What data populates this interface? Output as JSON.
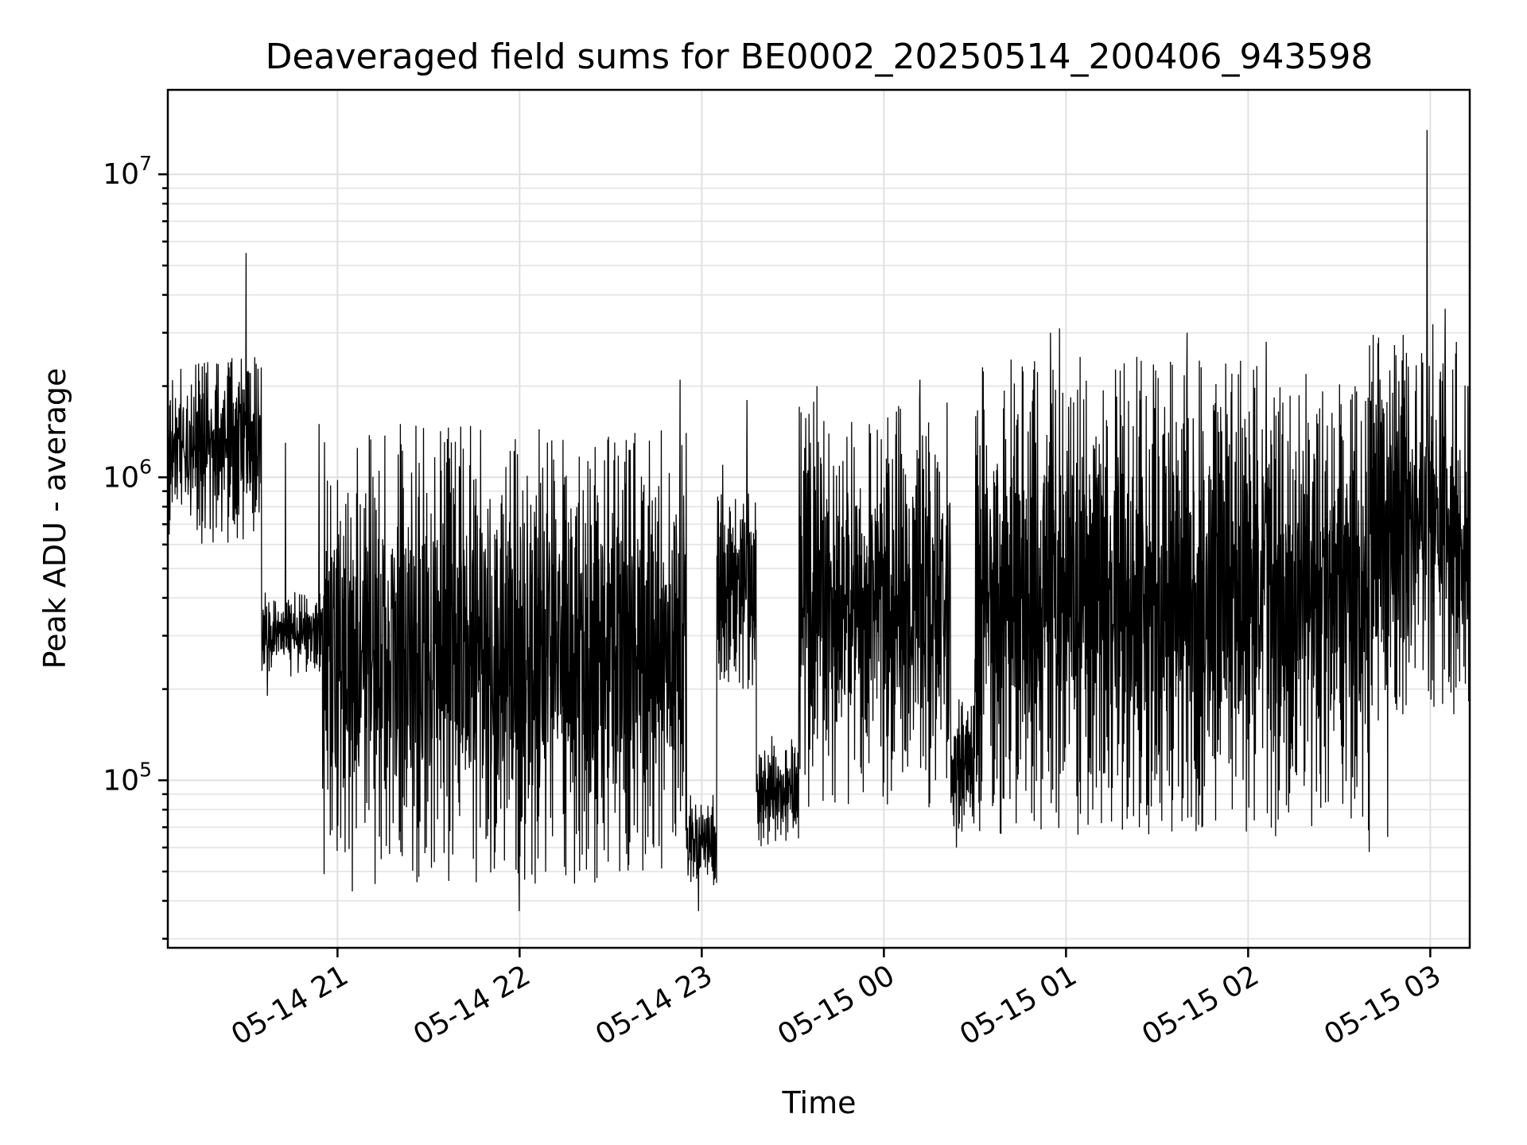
{
  "chart_data": {
    "type": "line",
    "title": "Deaveraged field sums for BE0002_20250514_200406_943598",
    "xlabel": "Time",
    "ylabel": "Peak ADU - average",
    "yscale": "log",
    "xlim": [
      "2025-05-14T20:04:06",
      "2025-05-15T03:13:00"
    ],
    "ylim": [
      28000,
      19000000
    ],
    "grid": true,
    "x_ticks": [
      "2025-05-14T21:00",
      "2025-05-14T22:00",
      "2025-05-14T23:00",
      "2025-05-15T00:00",
      "2025-05-15T01:00",
      "2025-05-15T02:00",
      "2025-05-15T03:00"
    ],
    "x_tick_labels": [
      "05-14 21",
      "05-14 22",
      "05-14 23",
      "05-15 00",
      "05-15 01",
      "05-15 02",
      "05-15 03"
    ],
    "y_ticks": [
      100000,
      1000000,
      10000000
    ],
    "y_tick_labels": [
      {
        "base": "10",
        "exp": "5"
      },
      {
        "base": "10",
        "exp": "6"
      },
      {
        "base": "10",
        "exp": "7"
      }
    ],
    "line_color": "#000000",
    "series": [
      {
        "segments": [
          {
            "start": "2025-05-14T20:04:06",
            "end": "2025-05-14T20:35:00",
            "low": 600000,
            "high": 2500000
          },
          {
            "start": "2025-05-14T20:35:00",
            "end": "2025-05-14T20:55:00",
            "low": 220000,
            "high": 420000
          },
          {
            "start": "2025-05-14T20:55:00",
            "end": "2025-05-14T22:55:00",
            "low": 45000,
            "high": 1500000
          },
          {
            "start": "2025-05-14T22:55:00",
            "end": "2025-05-14T23:05:00",
            "low": 45000,
            "high": 90000
          },
          {
            "start": "2025-05-14T23:05:00",
            "end": "2025-05-14T23:18:00",
            "low": 200000,
            "high": 900000
          },
          {
            "start": "2025-05-14T23:18:00",
            "end": "2025-05-14T23:32:00",
            "low": 60000,
            "high": 140000
          },
          {
            "start": "2025-05-14T23:32:00",
            "end": "2025-05-15T00:22:00",
            "low": 80000,
            "high": 1800000
          },
          {
            "start": "2025-05-15T00:22:00",
            "end": "2025-05-15T00:30:00",
            "low": 65000,
            "high": 200000
          },
          {
            "start": "2025-05-15T00:30:00",
            "end": "2025-05-15T02:40:00",
            "low": 65000,
            "high": 2500000
          },
          {
            "start": "2025-05-15T02:40:00",
            "end": "2025-05-15T03:13:00",
            "low": 150000,
            "high": 3000000
          }
        ],
        "spikes": [
          {
            "t": "2025-05-14T20:30:00",
            "y": 5500000
          },
          {
            "t": "2025-05-14T20:37:00",
            "y": 190000
          },
          {
            "t": "2025-05-14T20:43:00",
            "y": 1300000
          },
          {
            "t": "2025-05-14T20:54:00",
            "y": 1500000
          },
          {
            "t": "2025-05-14T21:05:00",
            "y": 43000
          },
          {
            "t": "2025-05-14T22:00:00",
            "y": 37000
          },
          {
            "t": "2025-05-14T22:53:00",
            "y": 2100000
          },
          {
            "t": "2025-05-14T22:59:00",
            "y": 37000
          },
          {
            "t": "2025-05-14T23:07:00",
            "y": 1100000
          },
          {
            "t": "2025-05-14T23:15:00",
            "y": 1800000
          },
          {
            "t": "2025-05-14T23:38:00",
            "y": 2000000
          },
          {
            "t": "2025-05-15T00:12:00",
            "y": 2100000
          },
          {
            "t": "2025-05-15T00:24:00",
            "y": 60000
          },
          {
            "t": "2025-05-15T00:55:00",
            "y": 3000000
          },
          {
            "t": "2025-05-15T00:58:00",
            "y": 3100000
          },
          {
            "t": "2025-05-15T01:40:00",
            "y": 3000000
          },
          {
            "t": "2025-05-15T01:43:00",
            "y": 68000
          },
          {
            "t": "2025-05-15T02:06:00",
            "y": 2800000
          },
          {
            "t": "2025-05-15T02:40:00",
            "y": 58000
          },
          {
            "t": "2025-05-15T02:46:00",
            "y": 65000
          },
          {
            "t": "2025-05-15T02:59:00",
            "y": 14000000
          },
          {
            "t": "2025-05-15T03:01:00",
            "y": 3200000
          },
          {
            "t": "2025-05-15T03:05:00",
            "y": 3600000
          }
        ]
      }
    ]
  }
}
